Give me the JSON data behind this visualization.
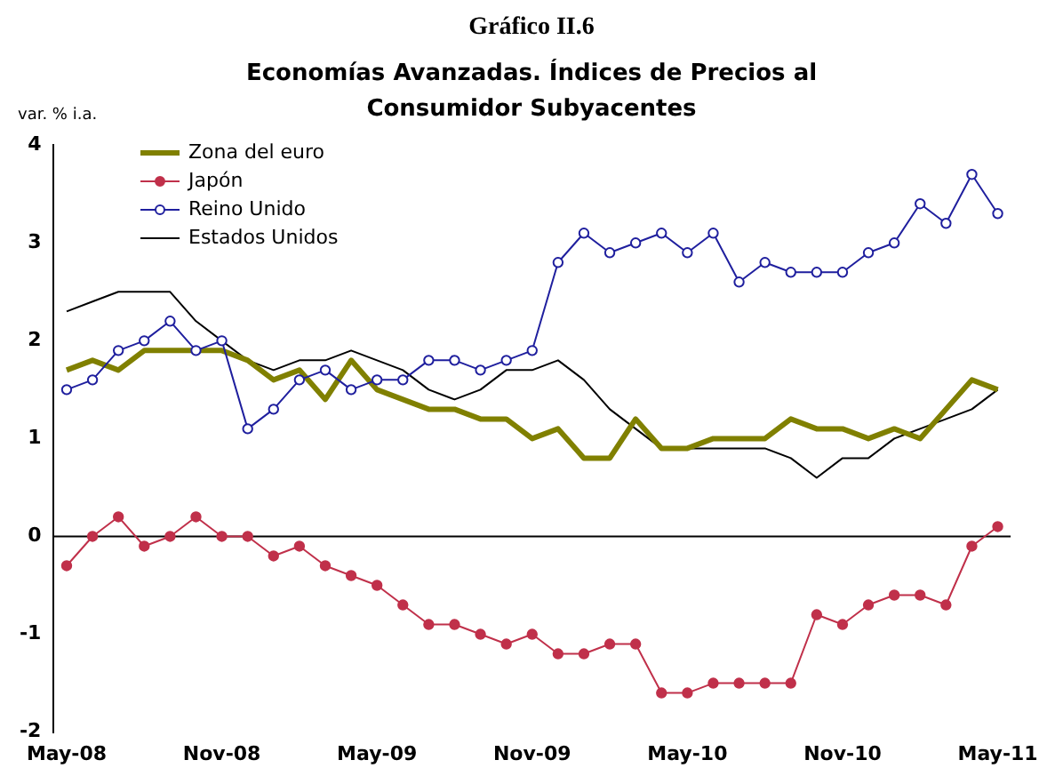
{
  "chart_data": {
    "type": "line",
    "title": "Gráfico II.6",
    "subtitle": "Economías Avanzadas. Índices de Precios al Consumidor Subyacentes",
    "ylabel": "var. % i.a.",
    "categories": [
      "May-08",
      null,
      null,
      null,
      null,
      null,
      "Nov-08",
      null,
      null,
      null,
      null,
      null,
      "May-09",
      null,
      null,
      null,
      null,
      null,
      "Nov-09",
      null,
      null,
      null,
      null,
      null,
      "May-10",
      null,
      null,
      null,
      null,
      null,
      "Nov-10",
      null,
      null,
      null,
      null,
      null,
      "May-11"
    ],
    "series": [
      {
        "name": "Zona del euro",
        "color": "#808000",
        "marker": "none",
        "values": [
          1.7,
          1.8,
          1.7,
          1.9,
          1.9,
          1.9,
          1.9,
          1.8,
          1.6,
          1.7,
          1.4,
          1.8,
          1.5,
          1.4,
          1.3,
          1.3,
          1.2,
          1.2,
          1.0,
          1.1,
          0.8,
          0.8,
          1.2,
          0.9,
          0.9,
          1.0,
          1.0,
          1.0,
          1.2,
          1.1,
          1.1,
          1.0,
          1.1,
          1.0,
          1.3,
          1.6,
          1.5
        ]
      },
      {
        "name": "Japón",
        "color": "#c0304a",
        "marker": "circle",
        "values": [
          -0.3,
          0,
          0.2,
          -0.1,
          0,
          0.2,
          0,
          0,
          -0.2,
          -0.1,
          -0.3,
          -0.4,
          -0.5,
          -0.7,
          -0.9,
          -0.9,
          -1.0,
          -1.1,
          -1.0,
          -1.2,
          -1.2,
          -1.1,
          -1.1,
          -1.6,
          -1.6,
          -1.5,
          -1.5,
          -1.5,
          -1.5,
          -0.8,
          -0.9,
          -0.7,
          -0.6,
          -0.6,
          -0.7,
          -0.1,
          0.1
        ]
      },
      {
        "name": "Reino Unido",
        "color": "#1f1f9e",
        "marker": "circle",
        "values": [
          1.5,
          1.6,
          1.9,
          2.0,
          2.2,
          1.9,
          2.0,
          1.1,
          1.3,
          1.6,
          1.7,
          1.5,
          1.6,
          1.6,
          1.8,
          1.8,
          1.7,
          1.8,
          1.9,
          2.8,
          3.1,
          2.9,
          3.0,
          3.1,
          2.9,
          3.1,
          2.6,
          2.8,
          2.7,
          2.7,
          2.7,
          2.9,
          3.0,
          3.4,
          3.2,
          3.7,
          3.3
        ]
      },
      {
        "name": "Estados Unidos",
        "color": "#000000",
        "marker": "none",
        "values": [
          2.3,
          2.4,
          2.5,
          2.5,
          2.5,
          2.2,
          2.0,
          1.8,
          1.7,
          1.8,
          1.8,
          1.9,
          1.8,
          1.7,
          1.5,
          1.4,
          1.5,
          1.7,
          1.7,
          1.8,
          1.6,
          1.3,
          1.1,
          0.9,
          0.9,
          0.9,
          0.9,
          0.9,
          0.8,
          0.6,
          0.8,
          0.8,
          1.0,
          1.1,
          1.2,
          1.3,
          1.5
        ]
      }
    ],
    "ylim": [
      -2,
      4
    ],
    "yticks": [
      -2,
      -1,
      0,
      1,
      2,
      3,
      4
    ],
    "grid": false,
    "legend": "top left",
    "ref_lines": [
      {
        "axis": "y",
        "value": 0,
        "color": "#000000"
      }
    ]
  }
}
